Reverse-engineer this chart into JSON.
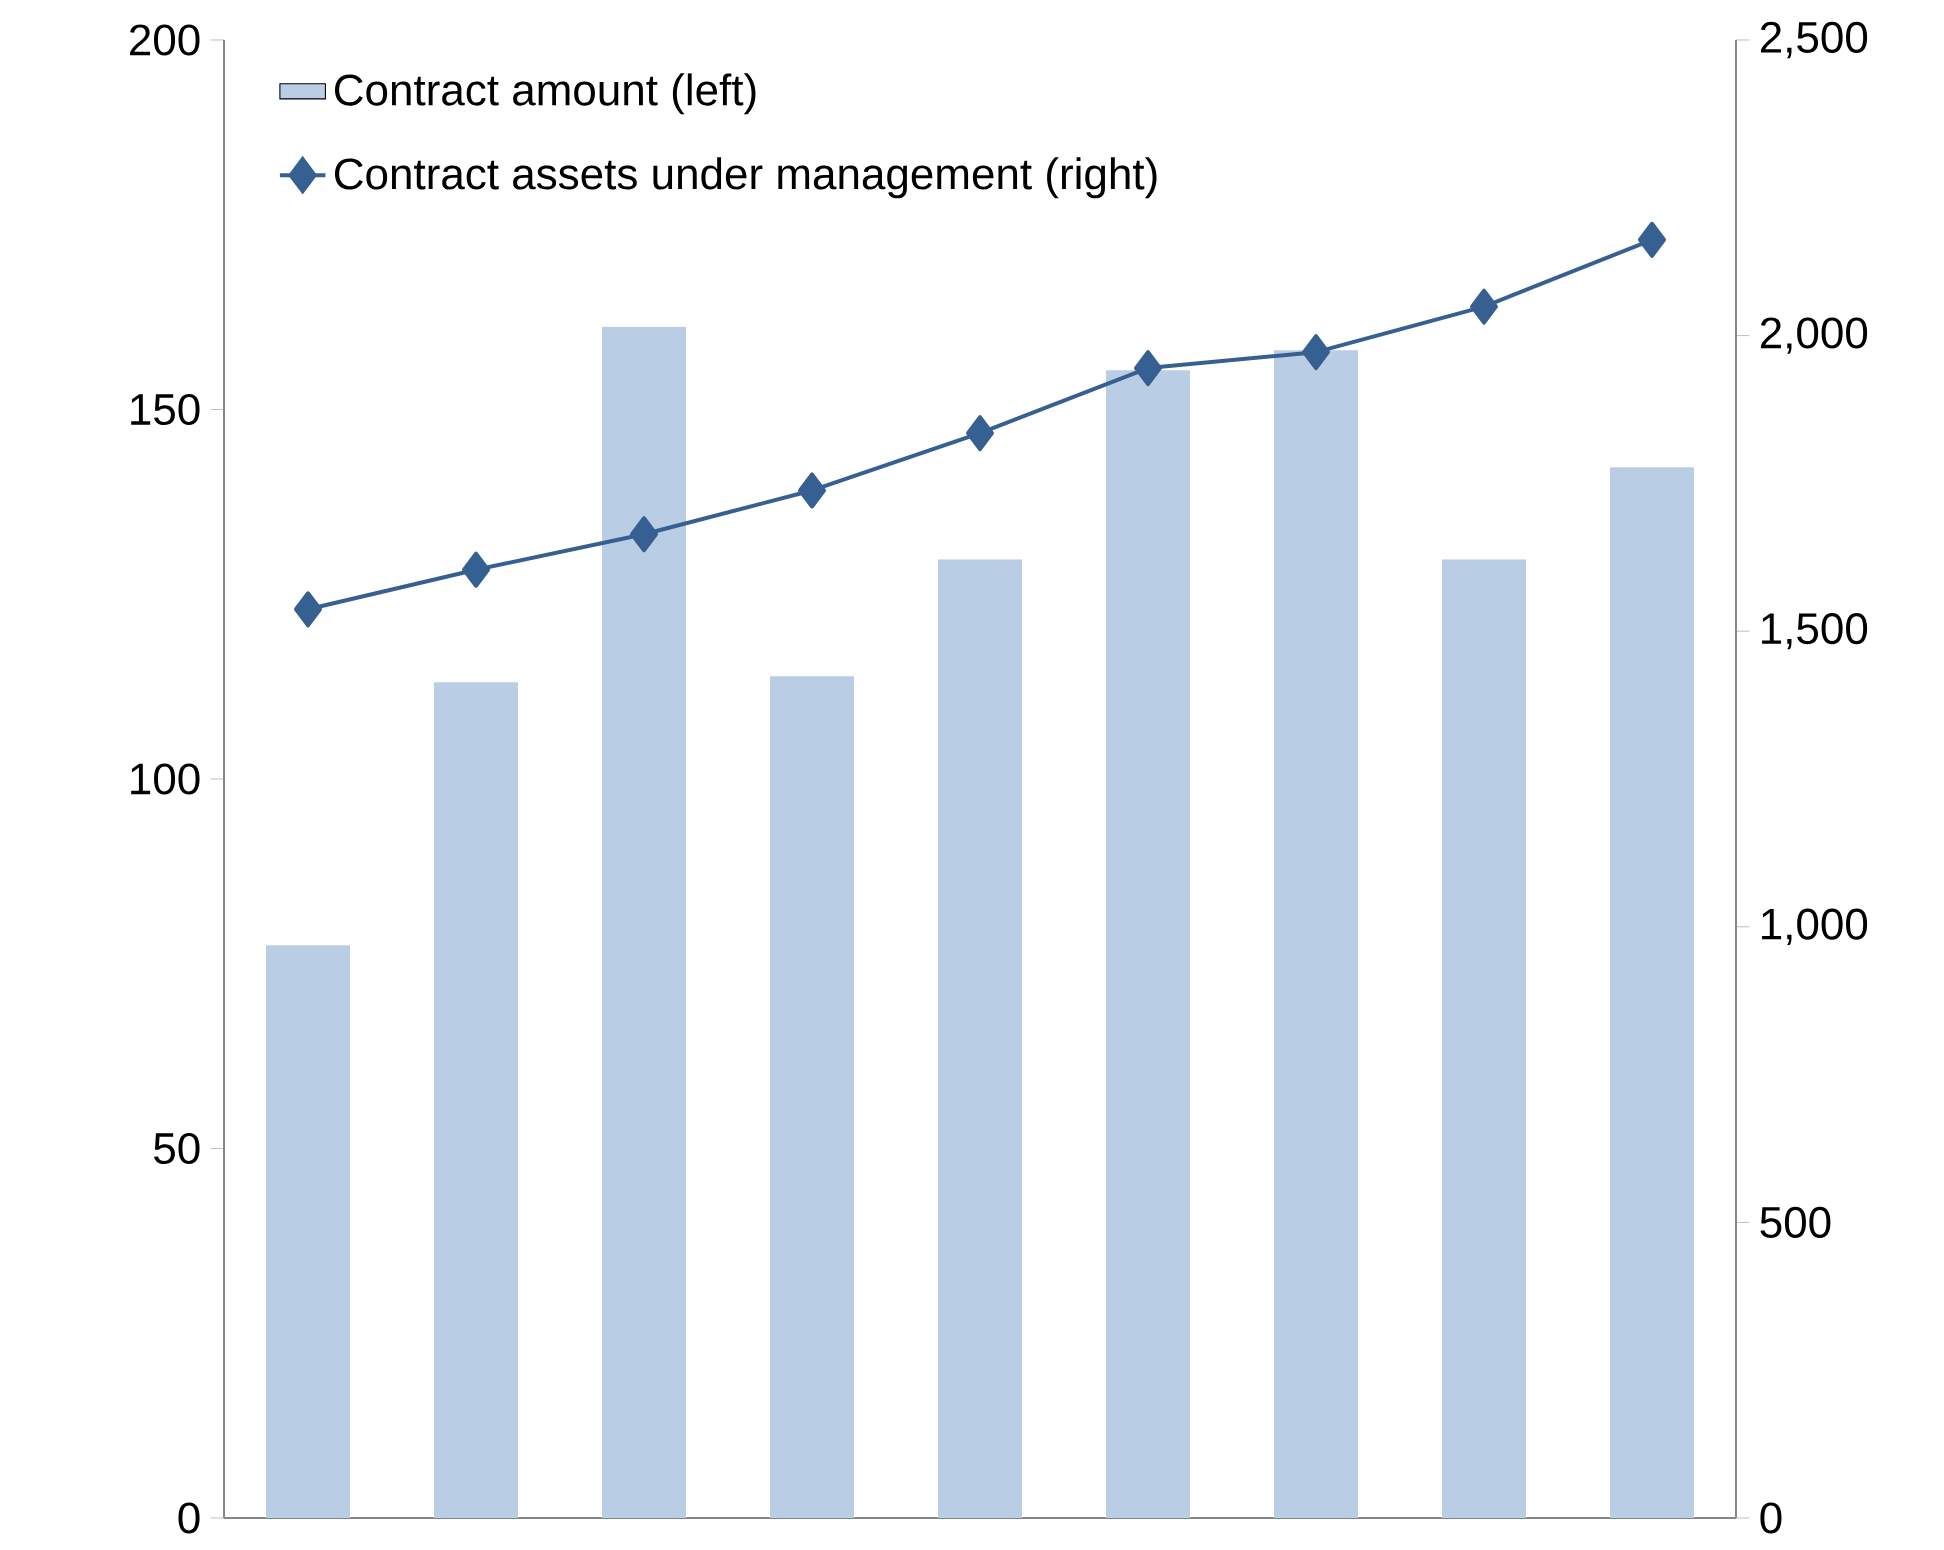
{
  "chart_data": {
    "type": "bar",
    "categories": [
      null,
      null,
      null,
      null,
      null,
      null,
      null,
      null,
      null
    ],
    "series": [
      {
        "name": "Contract amount (left)",
        "color": "#b9cde5",
        "values": [
          77.5,
          113.1,
          161.2,
          113.9,
          129.7,
          155.3,
          158.0,
          129.7,
          142.2
        ]
      },
      {
        "name": "Contract assets under management (right)",
        "type": "line",
        "axis": "y2",
        "color": "#366092",
        "marker": "diamond",
        "values": [
          1537,
          1604,
          1664,
          1738,
          1835,
          1945,
          1972,
          2049,
          2162
        ]
      }
    ],
    "ylim": [
      0,
      200
    ],
    "yticks": [
      0,
      50,
      100,
      150,
      200
    ],
    "y2lim": [
      0,
      2500
    ],
    "y2ticks": [
      0,
      500,
      {
        "value": 1000,
        "label": "1,000"
      },
      {
        "value": 1500,
        "label": "1,500"
      },
      {
        "value": 2000,
        "label": "2,000"
      },
      {
        "value": 2500,
        "label": "2,500"
      }
    ],
    "legend": "top left",
    "grid": false
  }
}
